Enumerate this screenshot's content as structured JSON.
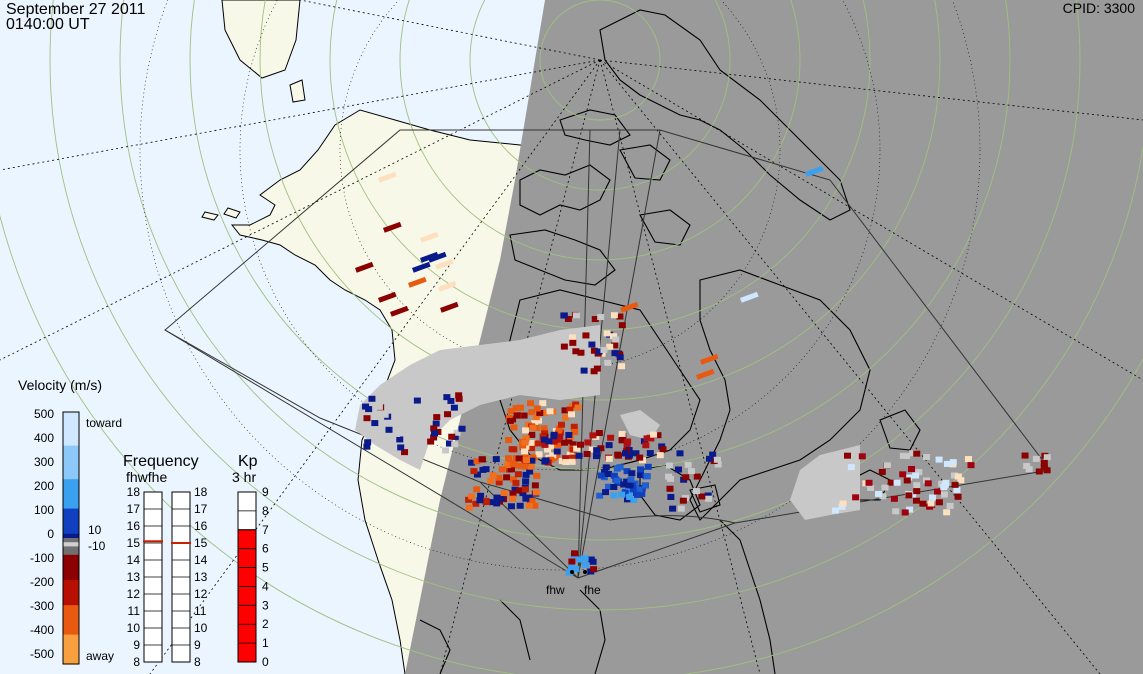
{
  "header": {
    "date": "September 27 2011",
    "time": "0140:00 UT",
    "cpid": "CPID: 3300"
  },
  "velocity_legend": {
    "title": "Velocity (m/s)",
    "ticks": [
      "500",
      "400",
      "300",
      "200",
      "100",
      "0",
      "-100",
      "-200",
      "-300",
      "-400",
      "-500"
    ],
    "toward_label": "toward",
    "away_label": "away",
    "ground_scatter_upper": "10",
    "ground_scatter_lower": "-10",
    "colors": {
      "toward_light": "#cfe8ff",
      "toward_mid": "#3aa0f0",
      "toward_dark": "#0a1a8a",
      "away_dark": "#8b0000",
      "away_mid": "#e85a10",
      "away_light": "#fde0c0"
    }
  },
  "frequency_panel": {
    "title": "Frequency",
    "subtitle": "fhwfhe",
    "radar_a": "fhw",
    "radar_b": "fhe",
    "ticks": [
      "18",
      "17",
      "16",
      "15",
      "14",
      "13",
      "12",
      "11",
      "10",
      "9",
      "8"
    ],
    "fhw_value_mhz": 15.1,
    "fhe_value_mhz": 15.0,
    "marker_color": "#c82000"
  },
  "kp_panel": {
    "title": "Kp",
    "subtitle": "3 hr",
    "ticks": [
      "9",
      "8",
      "7",
      "6",
      "5",
      "4",
      "3",
      "2",
      "1",
      "0"
    ],
    "kp_value": 7,
    "bar_color": "#ff0000"
  },
  "radars": {
    "fhw_label": "fhw",
    "fhe_label": "fhe"
  },
  "map_colors": {
    "ocean": "#eaf5ff",
    "land": "#f8f8e8",
    "night": "#9a9a9a",
    "ground_scatter": "#c8c8c8"
  }
}
